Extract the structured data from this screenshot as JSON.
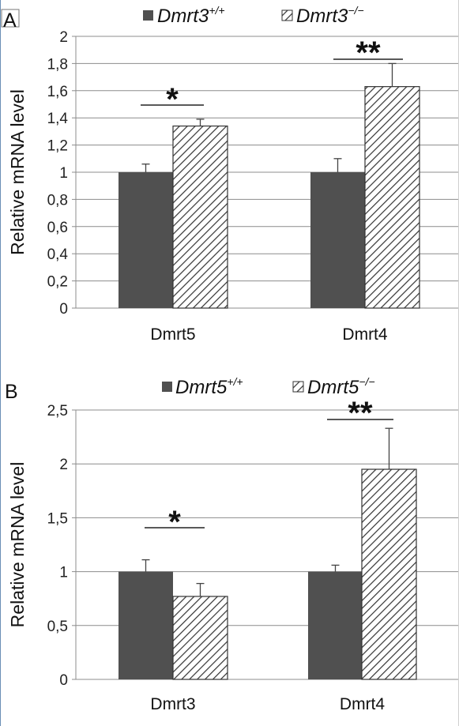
{
  "chart_data": [
    {
      "type": "bar",
      "panel_label": "A",
      "ylabel": "Relative mRNA level",
      "ylim": [
        0,
        2
      ],
      "yticks": [
        0,
        0.2,
        0.4,
        0.6,
        0.8,
        1,
        1.2,
        1.4,
        1.6,
        1.8,
        2
      ],
      "ytick_labels": [
        "0",
        "0,2",
        "0,4",
        "0,6",
        "0,8",
        "1",
        "1,2",
        "1,4",
        "1,6",
        "1,8",
        "2"
      ],
      "categories": [
        "Dmrt5",
        "Dmrt4"
      ],
      "grid": true,
      "legend_position": "top",
      "series": [
        {
          "name": "Dmrt3",
          "superscript": "+/+",
          "values": [
            1.0,
            1.0
          ],
          "errors": [
            0.06,
            0.1
          ],
          "fill": "solid",
          "color": "#505050"
        },
        {
          "name": "Dmrt3",
          "superscript": "−/−",
          "values": [
            1.34,
            1.63
          ],
          "errors": [
            0.05,
            0.17
          ],
          "fill": "hatched",
          "color": "#ffffff"
        }
      ],
      "significance": [
        "*",
        "**"
      ]
    },
    {
      "type": "bar",
      "panel_label": "B",
      "ylabel": "Relative mRNA level",
      "ylim": [
        0,
        2.5
      ],
      "yticks": [
        0,
        0.5,
        1,
        1.5,
        2,
        2.5
      ],
      "ytick_labels": [
        "0",
        "0,5",
        "1",
        "1,5",
        "2",
        "2,5"
      ],
      "categories": [
        "Dmrt3",
        "Dmrt4"
      ],
      "grid": true,
      "legend_position": "top",
      "series": [
        {
          "name": "Dmrt5",
          "superscript": "+/+",
          "values": [
            1.0,
            1.0
          ],
          "errors": [
            0.11,
            0.06
          ],
          "fill": "solid",
          "color": "#505050"
        },
        {
          "name": "Dmrt5",
          "superscript": "−/−",
          "values": [
            0.77,
            1.95
          ],
          "errors": [
            0.12,
            0.38
          ],
          "fill": "hatched",
          "color": "#ffffff"
        }
      ],
      "significance": [
        "*",
        "**"
      ]
    }
  ]
}
